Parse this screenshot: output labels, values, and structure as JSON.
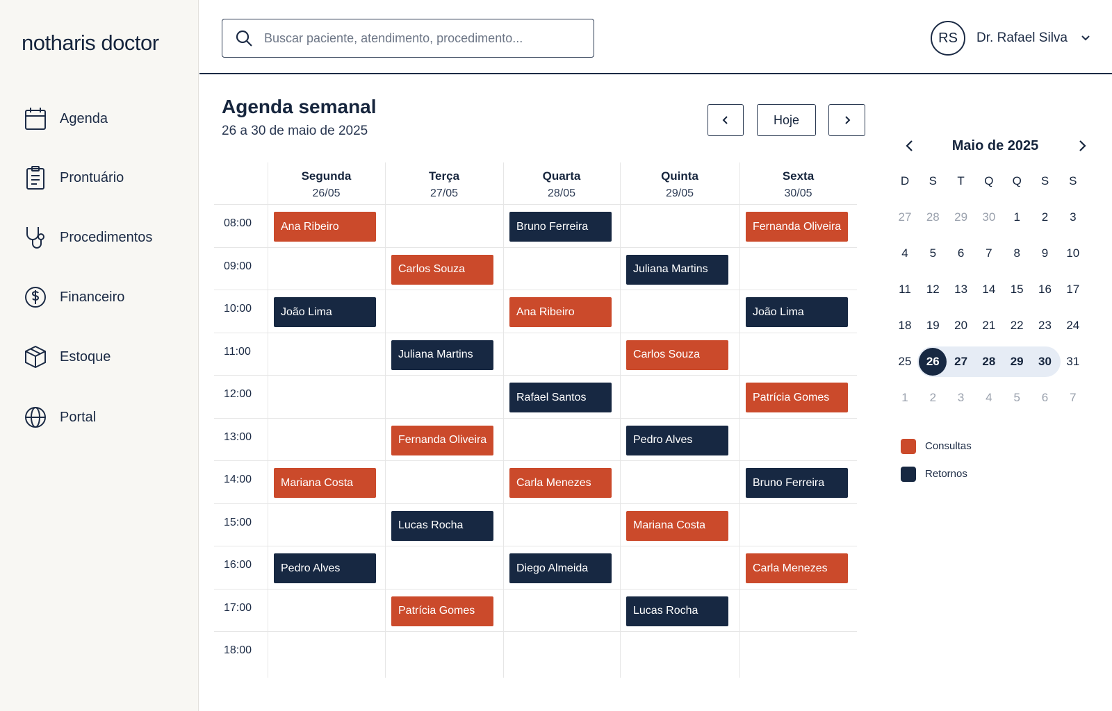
{
  "app": {
    "logo": "notharis doctor"
  },
  "sidebar": {
    "items": [
      {
        "label": "Agenda",
        "icon": "calendar-icon"
      },
      {
        "label": "Prontuário",
        "icon": "clipboard-icon"
      },
      {
        "label": "Procedimentos",
        "icon": "stethoscope-icon"
      },
      {
        "label": "Financeiro",
        "icon": "dollar-icon"
      },
      {
        "label": "Estoque",
        "icon": "box-icon"
      },
      {
        "label": "Portal",
        "icon": "globe-icon"
      }
    ]
  },
  "header": {
    "search_placeholder": "Buscar paciente, atendimento, procedimento...",
    "search_value": "",
    "user_initials": "RS",
    "user_name": "Dr. Rafael Silva"
  },
  "week": {
    "title": "Agenda semanal",
    "subtitle": "26 a 30 de maio de 2025",
    "today_label": "Hoje",
    "days": [
      {
        "name": "Segunda",
        "date": "26/05"
      },
      {
        "name": "Terça",
        "date": "27/05"
      },
      {
        "name": "Quarta",
        "date": "28/05"
      },
      {
        "name": "Quinta",
        "date": "29/05"
      },
      {
        "name": "Sexta",
        "date": "30/05"
      }
    ],
    "times": [
      "08:00",
      "09:00",
      "10:00",
      "11:00",
      "12:00",
      "13:00",
      "14:00",
      "15:00",
      "16:00",
      "17:00",
      "18:00"
    ],
    "appointments": [
      {
        "day": 0,
        "time": "08:00",
        "patient": "Ana Ribeiro",
        "type": "consulta"
      },
      {
        "day": 2,
        "time": "08:00",
        "patient": "Bruno Ferreira",
        "type": "retorno"
      },
      {
        "day": 4,
        "time": "08:00",
        "patient": "Fernanda Oliveira",
        "type": "consulta"
      },
      {
        "day": 1,
        "time": "09:00",
        "patient": "Carlos Souza",
        "type": "consulta"
      },
      {
        "day": 3,
        "time": "09:00",
        "patient": "Juliana Martins",
        "type": "retorno"
      },
      {
        "day": 0,
        "time": "10:00",
        "patient": "João Lima",
        "type": "retorno"
      },
      {
        "day": 2,
        "time": "10:00",
        "patient": "Ana Ribeiro",
        "type": "consulta"
      },
      {
        "day": 4,
        "time": "10:00",
        "patient": "João Lima",
        "type": "retorno"
      },
      {
        "day": 1,
        "time": "11:00",
        "patient": "Juliana Martins",
        "type": "retorno"
      },
      {
        "day": 3,
        "time": "11:00",
        "patient": "Carlos Souza",
        "type": "consulta"
      },
      {
        "day": 2,
        "time": "12:00",
        "patient": "Rafael Santos",
        "type": "retorno"
      },
      {
        "day": 4,
        "time": "12:00",
        "patient": "Patrícia Gomes",
        "type": "consulta"
      },
      {
        "day": 1,
        "time": "13:00",
        "patient": "Fernanda Oliveira",
        "type": "consulta"
      },
      {
        "day": 3,
        "time": "13:00",
        "patient": "Pedro Alves",
        "type": "retorno"
      },
      {
        "day": 0,
        "time": "14:00",
        "patient": "Mariana Costa",
        "type": "consulta"
      },
      {
        "day": 2,
        "time": "14:00",
        "patient": "Carla Menezes",
        "type": "consulta"
      },
      {
        "day": 4,
        "time": "14:00",
        "patient": "Bruno Ferreira",
        "type": "retorno"
      },
      {
        "day": 1,
        "time": "15:00",
        "patient": "Lucas Rocha",
        "type": "retorno"
      },
      {
        "day": 3,
        "time": "15:00",
        "patient": "Mariana Costa",
        "type": "consulta"
      },
      {
        "day": 0,
        "time": "16:00",
        "patient": "Pedro Alves",
        "type": "retorno"
      },
      {
        "day": 2,
        "time": "16:00",
        "patient": "Diego Almeida",
        "type": "retorno"
      },
      {
        "day": 4,
        "time": "16:00",
        "patient": "Carla Menezes",
        "type": "consulta"
      },
      {
        "day": 1,
        "time": "17:00",
        "patient": "Patrícia Gomes",
        "type": "consulta"
      },
      {
        "day": 3,
        "time": "17:00",
        "patient": "Lucas Rocha",
        "type": "retorno"
      }
    ]
  },
  "mini_calendar": {
    "title": "Maio de 2025",
    "weekdays": [
      "D",
      "S",
      "T",
      "Q",
      "Q",
      "S",
      "S"
    ],
    "weeks": [
      [
        {
          "d": "27",
          "muted": true
        },
        {
          "d": "28",
          "muted": true
        },
        {
          "d": "29",
          "muted": true
        },
        {
          "d": "30",
          "muted": true
        },
        {
          "d": "1"
        },
        {
          "d": "2"
        },
        {
          "d": "3"
        }
      ],
      [
        {
          "d": "4"
        },
        {
          "d": "5"
        },
        {
          "d": "6"
        },
        {
          "d": "7"
        },
        {
          "d": "8"
        },
        {
          "d": "9"
        },
        {
          "d": "10"
        }
      ],
      [
        {
          "d": "11"
        },
        {
          "d": "12"
        },
        {
          "d": "13"
        },
        {
          "d": "14"
        },
        {
          "d": "15"
        },
        {
          "d": "16"
        },
        {
          "d": "17"
        }
      ],
      [
        {
          "d": "18"
        },
        {
          "d": "19"
        },
        {
          "d": "20"
        },
        {
          "d": "21"
        },
        {
          "d": "22"
        },
        {
          "d": "23"
        },
        {
          "d": "24"
        }
      ],
      [
        {
          "d": "25"
        },
        {
          "d": "26",
          "today": true
        },
        {
          "d": "27",
          "range": true
        },
        {
          "d": "28",
          "range": true
        },
        {
          "d": "29",
          "range": true
        },
        {
          "d": "30",
          "range": true
        },
        {
          "d": "31"
        }
      ],
      [
        {
          "d": "1",
          "muted": true
        },
        {
          "d": "2",
          "muted": true
        },
        {
          "d": "3",
          "muted": true
        },
        {
          "d": "4",
          "muted": true
        },
        {
          "d": "5",
          "muted": true
        },
        {
          "d": "6",
          "muted": true
        },
        {
          "d": "7",
          "muted": true
        }
      ]
    ]
  },
  "legend": [
    {
      "label": "Consultas",
      "color": "#cb4a2b"
    },
    {
      "label": "Retornos",
      "color": "#172842"
    }
  ],
  "colors": {
    "consulta": "#cb4a2b",
    "retorno": "#172842",
    "accent": "#16253d",
    "range": "#e6ecf5"
  }
}
